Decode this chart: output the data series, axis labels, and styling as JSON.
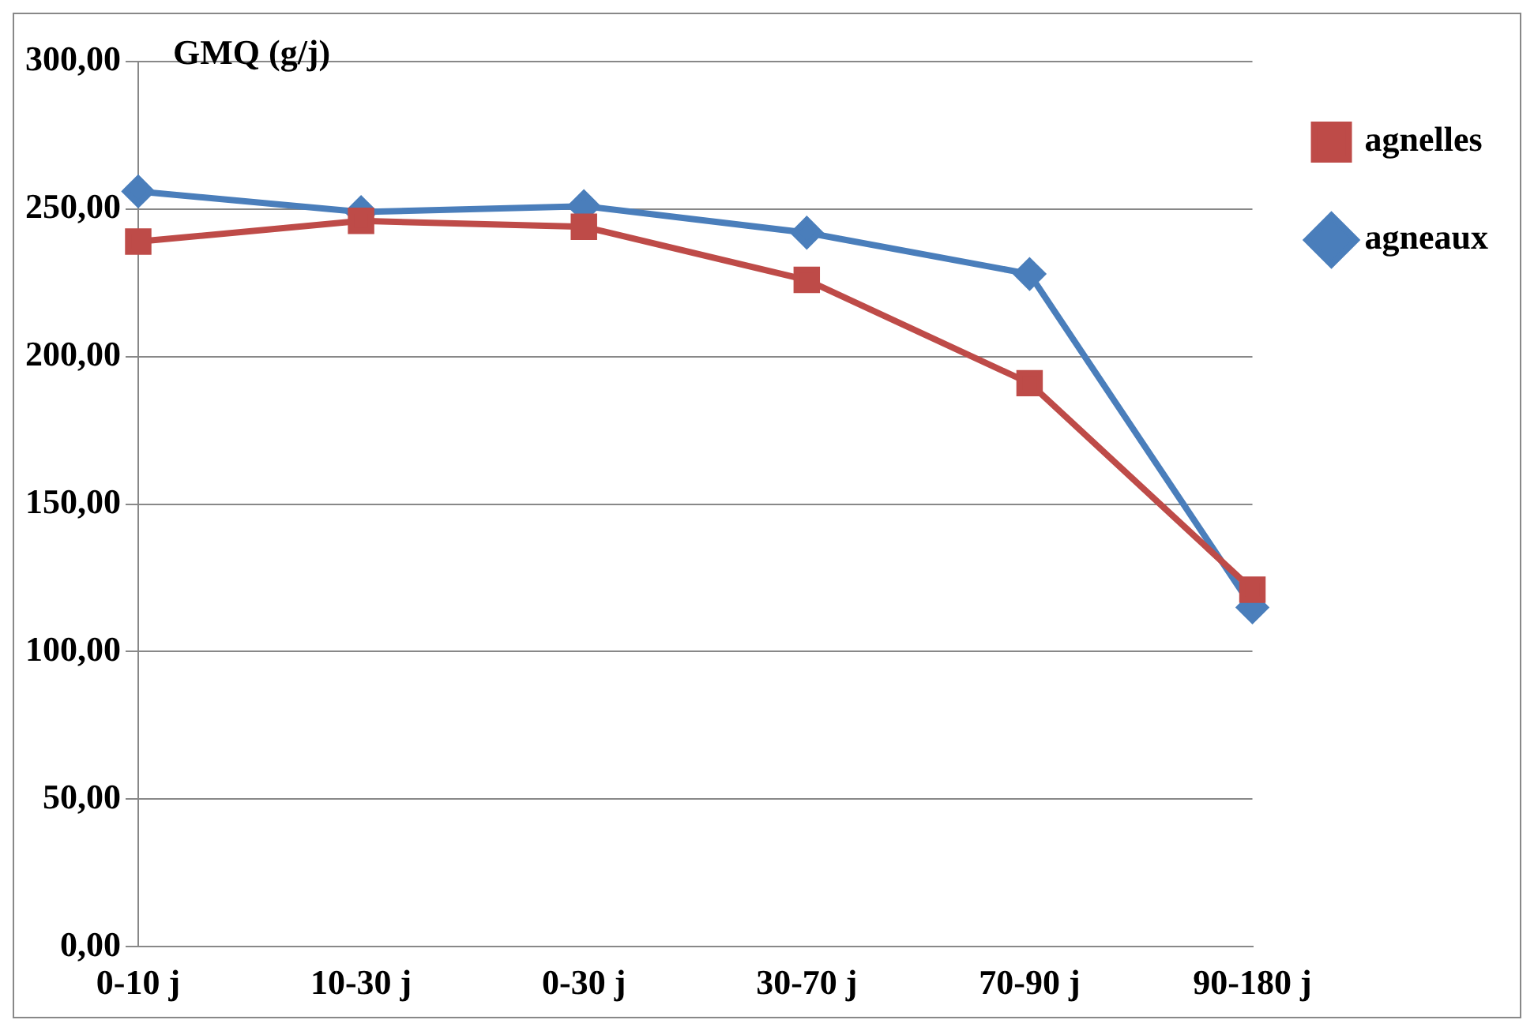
{
  "chart_data": {
    "type": "line",
    "ylabel": "GMQ (g/j)",
    "categories": [
      "0-10 j",
      "10-30 j",
      "0-30 j",
      "30-70 j",
      "70-90 j",
      "90-180 j"
    ],
    "series": [
      {
        "name": "agneaux",
        "color": "#4a7ebb",
        "marker": "diamond",
        "values": [
          256,
          249,
          251,
          242,
          228,
          115
        ]
      },
      {
        "name": "agnelles",
        "color": "#be4b48",
        "marker": "square",
        "values": [
          239,
          246,
          244,
          226,
          191,
          121
        ]
      }
    ],
    "ylim": [
      0,
      300
    ],
    "yticks": [
      {
        "value": 0,
        "label": "0,00"
      },
      {
        "value": 50,
        "label": "50,00"
      },
      {
        "value": 100,
        "label": "100,00"
      },
      {
        "value": 150,
        "label": "150,00"
      },
      {
        "value": 200,
        "label": "200,00"
      },
      {
        "value": 250,
        "label": "250,00"
      },
      {
        "value": 300,
        "label": "300,00"
      }
    ],
    "grid": "y",
    "legend": "top right",
    "line_style": "solid"
  }
}
